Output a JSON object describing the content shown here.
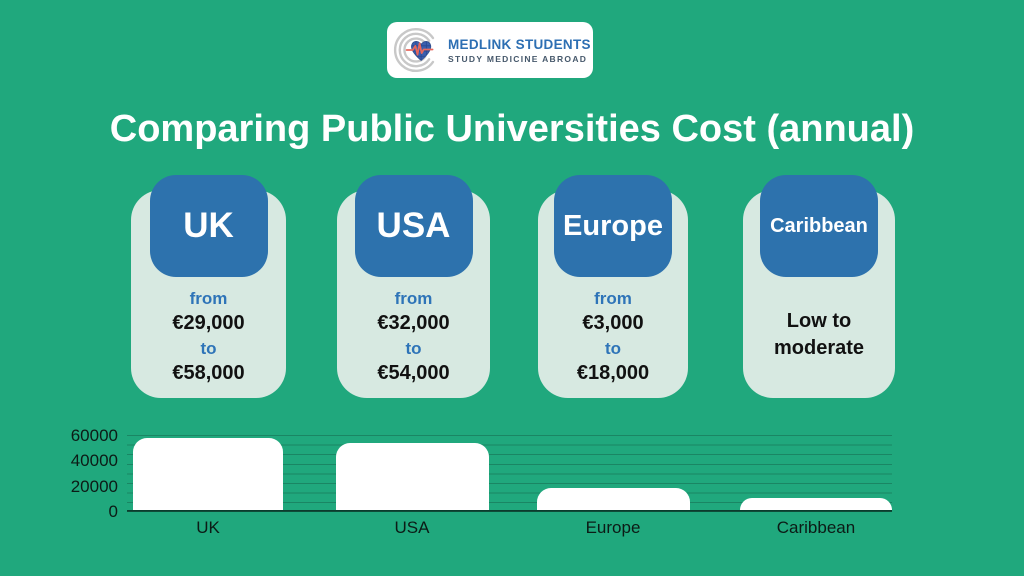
{
  "colors": {
    "background": "#20a87d",
    "card": "#d7e9e1",
    "badge_blue": "#2d72ad",
    "accent_blue": "#2e74b8",
    "bar": "#ffffff",
    "title": "#ffffff"
  },
  "logo": {
    "name": "MEDLINK STUDENTS",
    "tagline": "STUDY MEDICINE ABROAD",
    "icon": "medlink-heart-ecg-logo"
  },
  "title": "Comparing Public Universities Cost (annual)",
  "cards": [
    {
      "region": "UK",
      "from_label": "from",
      "min": "€29,000",
      "to_label": "to",
      "max": "€58,000"
    },
    {
      "region": "USA",
      "from_label": "from",
      "min": "€32,000",
      "to_label": "to",
      "max": "€54,000"
    },
    {
      "region": "Europe",
      "from_label": "from",
      "min": "€3,000",
      "to_label": "to",
      "max": "€18,000"
    },
    {
      "region": "Caribbean",
      "note": "Low to moderate"
    }
  ],
  "chart_data": {
    "type": "bar",
    "title": "",
    "xlabel": "",
    "ylabel": "",
    "categories": [
      "UK",
      "USA",
      "Europe",
      "Caribbean"
    ],
    "values": [
      58000,
      54000,
      18000,
      10000
    ],
    "ylim": [
      0,
      60000
    ],
    "yticks": [
      "60000",
      "40000",
      "20000",
      "0"
    ],
    "gridline_interval": 7500,
    "grid": true,
    "legend": false,
    "bar_color": "#ffffff"
  }
}
